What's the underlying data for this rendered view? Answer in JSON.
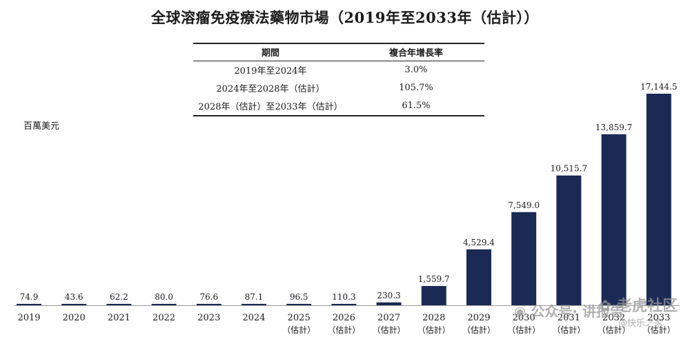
{
  "title": "全球溶瘤免疫療法藥物市場（2019年至2033年（估計））",
  "cagr_table": {
    "headers": [
      "期間",
      "複合年增長率"
    ],
    "rows": [
      [
        "2019年至2024年",
        "3.0%"
      ],
      [
        "2024年至2028年（估計）",
        "105.7%"
      ],
      [
        "2028年（估計）至2033年（估計）",
        "61.5%"
      ]
    ]
  },
  "watermark": {
    "left": "公众号",
    "mid": "· 讲报告",
    "right": "老虎社区",
    "sub": "@快乐之家"
  },
  "chart_data": {
    "type": "bar",
    "ylabel": "百萬美元",
    "bar_color": "#1b2a55",
    "estimate_suffix": "（估計）",
    "categories": [
      "2019",
      "2020",
      "2021",
      "2022",
      "2023",
      "2024",
      "2025",
      "2026",
      "2027",
      "2028",
      "2029",
      "2030",
      "2031",
      "2032",
      "2033"
    ],
    "estimated": [
      false,
      false,
      false,
      false,
      false,
      false,
      true,
      true,
      true,
      true,
      true,
      true,
      true,
      true,
      true
    ],
    "values": [
      74.9,
      43.6,
      62.2,
      80.0,
      76.6,
      87.1,
      96.5,
      110.3,
      230.3,
      1559.7,
      4529.4,
      7549.0,
      10515.7,
      13859.7,
      17144.5
    ],
    "labels": [
      "74.9",
      "43.6",
      "62.2",
      "80.0",
      "76.6",
      "87.1",
      "96.5",
      "110.3",
      "230.3",
      "1,559.7",
      "4,529.4",
      "7,549.0",
      "10,515.7",
      "13,859.7",
      "17,144.5"
    ]
  }
}
